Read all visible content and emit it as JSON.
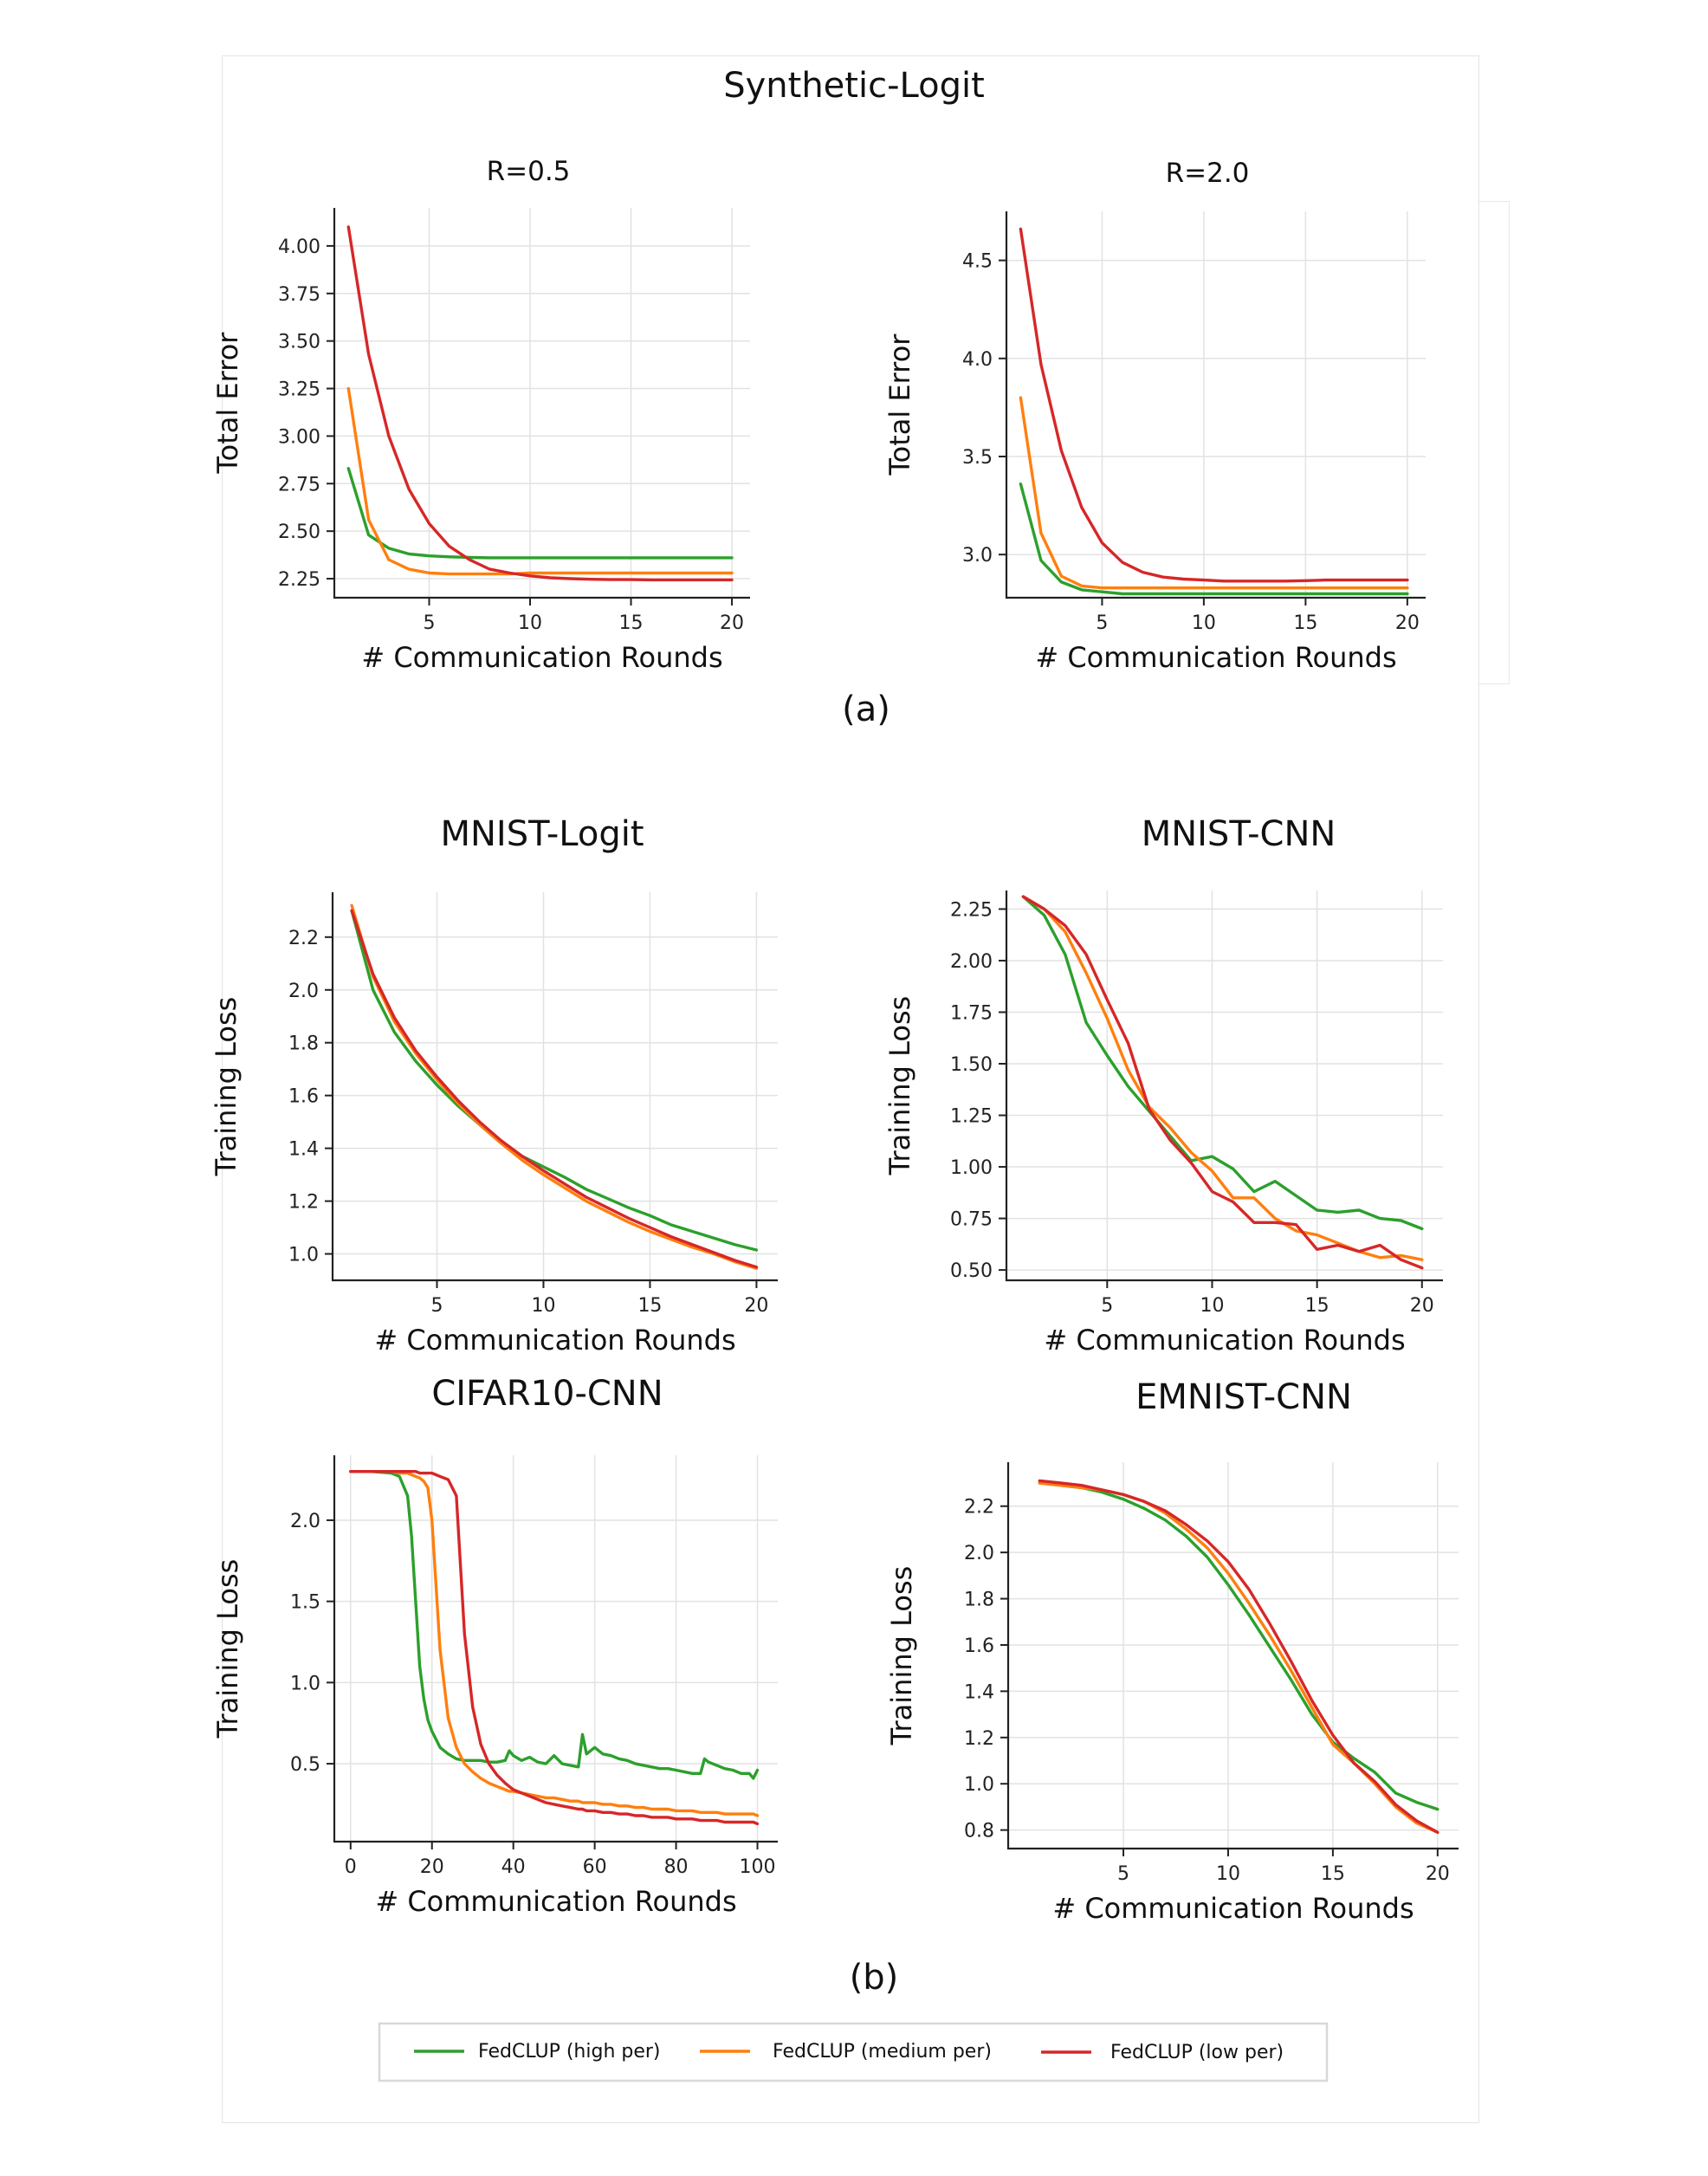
{
  "figure": {
    "top_title": "Synthetic-Logit",
    "label_a": "(a)",
    "label_b": "(b)"
  },
  "legend": [
    {
      "name": "FedCLUP (high per)",
      "color": "#2ca02c"
    },
    {
      "name": "FedCLUP (medium per)",
      "color": "#ff7f0e"
    },
    {
      "name": "FedCLUP (low per)",
      "color": "#d62728"
    }
  ],
  "chart_data": [
    {
      "id": "r05",
      "type": "line",
      "title": "R=0.5",
      "xlabel": "# Communication Rounds",
      "ylabel": "Total Error",
      "xlim": [
        0.3,
        20.9
      ],
      "ylim": [
        2.15,
        4.2
      ],
      "xticks": [
        5,
        10,
        15,
        20
      ],
      "yticks": [
        2.25,
        2.5,
        2.75,
        3.0,
        3.25,
        3.5,
        3.75,
        4.0
      ],
      "ydec": 2,
      "x": [
        1,
        2,
        3,
        4,
        5,
        6,
        7,
        8,
        9,
        10,
        11,
        12,
        13,
        14,
        15,
        16,
        17,
        18,
        19,
        20
      ],
      "series": [
        {
          "name": "FedCLUP (high per)",
          "values": [
            2.83,
            2.48,
            2.41,
            2.38,
            2.37,
            2.365,
            2.362,
            2.36,
            2.36,
            2.36,
            2.36,
            2.36,
            2.36,
            2.36,
            2.36,
            2.36,
            2.36,
            2.36,
            2.36,
            2.36
          ]
        },
        {
          "name": "FedCLUP (medium per)",
          "values": [
            3.25,
            2.56,
            2.35,
            2.3,
            2.28,
            2.275,
            2.275,
            2.275,
            2.275,
            2.28,
            2.28,
            2.28,
            2.28,
            2.28,
            2.28,
            2.28,
            2.28,
            2.28,
            2.28,
            2.28
          ]
        },
        {
          "name": "FedCLUP (low per)",
          "values": [
            4.1,
            3.43,
            3.0,
            2.72,
            2.54,
            2.42,
            2.35,
            2.3,
            2.28,
            2.265,
            2.255,
            2.25,
            2.247,
            2.245,
            2.245,
            2.244,
            2.244,
            2.244,
            2.244,
            2.244
          ]
        }
      ]
    },
    {
      "id": "r20",
      "type": "line",
      "title": "R=2.0",
      "xlabel": "# Communication Rounds",
      "ylabel": "Total Error",
      "xlim": [
        0.3,
        20.9
      ],
      "ylim": [
        2.78,
        4.75
      ],
      "xticks": [
        5,
        10,
        15,
        20
      ],
      "yticks": [
        3.0,
        3.5,
        4.0,
        4.5
      ],
      "ydec": 1,
      "x": [
        1,
        2,
        3,
        4,
        5,
        6,
        7,
        8,
        9,
        10,
        11,
        12,
        13,
        14,
        15,
        16,
        17,
        18,
        19,
        20
      ],
      "series": [
        {
          "name": "FedCLUP (high per)",
          "values": [
            3.36,
            2.97,
            2.86,
            2.82,
            2.81,
            2.8,
            2.8,
            2.8,
            2.8,
            2.8,
            2.8,
            2.8,
            2.8,
            2.8,
            2.8,
            2.8,
            2.8,
            2.8,
            2.8,
            2.8
          ]
        },
        {
          "name": "FedCLUP (medium per)",
          "values": [
            3.8,
            3.11,
            2.89,
            2.84,
            2.83,
            2.83,
            2.83,
            2.83,
            2.83,
            2.83,
            2.83,
            2.83,
            2.83,
            2.83,
            2.83,
            2.83,
            2.83,
            2.83,
            2.83,
            2.83
          ]
        },
        {
          "name": "FedCLUP (low per)",
          "values": [
            4.66,
            3.97,
            3.53,
            3.24,
            3.06,
            2.96,
            2.91,
            2.885,
            2.875,
            2.87,
            2.865,
            2.865,
            2.865,
            2.865,
            2.867,
            2.87,
            2.87,
            2.87,
            2.87,
            2.87
          ]
        }
      ]
    },
    {
      "id": "mnist_logit",
      "type": "line",
      "title": "MNIST-Logit",
      "xlabel": "# Communication Rounds",
      "ylabel": "Training Loss",
      "xlim": [
        0.1,
        21.0
      ],
      "ylim": [
        0.9,
        2.37
      ],
      "xticks": [
        5,
        10,
        15,
        20
      ],
      "yticks": [
        1.0,
        1.2,
        1.4,
        1.6,
        1.8,
        2.0,
        2.2
      ],
      "ydec": 1,
      "x": [
        1,
        2,
        3,
        4,
        5,
        6,
        7,
        8,
        9,
        10,
        11,
        12,
        13,
        14,
        15,
        16,
        17,
        18,
        19,
        20
      ],
      "series": [
        {
          "name": "FedCLUP (high per)",
          "values": [
            2.3,
            2.0,
            1.84,
            1.73,
            1.64,
            1.56,
            1.49,
            1.42,
            1.37,
            1.33,
            1.29,
            1.245,
            1.21,
            1.175,
            1.145,
            1.11,
            1.085,
            1.06,
            1.035,
            1.015
          ]
        },
        {
          "name": "FedCLUP (medium per)",
          "values": [
            2.32,
            2.05,
            1.88,
            1.76,
            1.66,
            1.57,
            1.49,
            1.42,
            1.355,
            1.3,
            1.25,
            1.2,
            1.16,
            1.12,
            1.085,
            1.055,
            1.025,
            1.0,
            0.97,
            0.945
          ]
        },
        {
          "name": "FedCLUP (low per)",
          "values": [
            2.3,
            2.06,
            1.895,
            1.77,
            1.67,
            1.58,
            1.5,
            1.43,
            1.37,
            1.315,
            1.265,
            1.215,
            1.175,
            1.135,
            1.1,
            1.065,
            1.035,
            1.005,
            0.975,
            0.95
          ]
        }
      ]
    },
    {
      "id": "mnist_cnn",
      "type": "line",
      "title": "MNIST-CNN",
      "xlabel": "# Communication Rounds",
      "ylabel": "Training Loss",
      "xlim": [
        0.2,
        21.0
      ],
      "ylim": [
        0.45,
        2.34
      ],
      "xticks": [
        5,
        10,
        15,
        20
      ],
      "yticks": [
        0.5,
        0.75,
        1.0,
        1.25,
        1.5,
        1.75,
        2.0,
        2.25
      ],
      "ydec": 2,
      "x": [
        1,
        2,
        3,
        4,
        5,
        6,
        7,
        8,
        9,
        10,
        11,
        12,
        13,
        14,
        15,
        16,
        17,
        18,
        19,
        20
      ],
      "series": [
        {
          "name": "FedCLUP (high per)",
          "values": [
            2.31,
            2.22,
            2.03,
            1.7,
            1.54,
            1.39,
            1.27,
            1.15,
            1.03,
            1.05,
            0.99,
            0.88,
            0.93,
            0.86,
            0.79,
            0.78,
            0.79,
            0.75,
            0.74,
            0.7
          ]
        },
        {
          "name": "FedCLUP (medium per)",
          "values": [
            2.31,
            2.25,
            2.14,
            1.94,
            1.72,
            1.47,
            1.29,
            1.19,
            1.07,
            0.98,
            0.85,
            0.85,
            0.75,
            0.69,
            0.67,
            0.63,
            0.59,
            0.56,
            0.57,
            0.55
          ]
        },
        {
          "name": "FedCLUP (low per)",
          "values": [
            2.31,
            2.25,
            2.17,
            2.03,
            1.81,
            1.6,
            1.28,
            1.13,
            1.02,
            0.88,
            0.83,
            0.73,
            0.73,
            0.72,
            0.6,
            0.62,
            0.59,
            0.62,
            0.55,
            0.51
          ]
        }
      ]
    },
    {
      "id": "cifar10_cnn",
      "type": "line",
      "title": "CIFAR10-CNN",
      "xlabel": "# Communication Rounds",
      "ylabel": "Training Loss",
      "xlim": [
        -4,
        105
      ],
      "ylim": [
        0.02,
        2.4
      ],
      "xticks": [
        0,
        20,
        40,
        60,
        80,
        100
      ],
      "yticks": [
        0.5,
        1.0,
        1.5,
        2.0
      ],
      "ydec": 1,
      "x": [
        0,
        5,
        10,
        12,
        14,
        15,
        16,
        17,
        18,
        19,
        20,
        21,
        22,
        24,
        26,
        28,
        30,
        32,
        34,
        36,
        38,
        39,
        40,
        42,
        44,
        46,
        48,
        50,
        52,
        54,
        56,
        57,
        58,
        60,
        62,
        64,
        66,
        68,
        70,
        72,
        74,
        76,
        78,
        80,
        82,
        84,
        86,
        87,
        88,
        90,
        92,
        94,
        96,
        98,
        99,
        100
      ],
      "series": [
        {
          "name": "FedCLUP (high per)",
          "values": [
            2.3,
            2.3,
            2.29,
            2.27,
            2.15,
            1.9,
            1.5,
            1.1,
            0.9,
            0.77,
            0.7,
            0.65,
            0.6,
            0.56,
            0.53,
            0.52,
            0.52,
            0.52,
            0.51,
            0.51,
            0.52,
            0.58,
            0.55,
            0.52,
            0.54,
            0.51,
            0.5,
            0.55,
            0.5,
            0.49,
            0.48,
            0.68,
            0.56,
            0.6,
            0.56,
            0.55,
            0.53,
            0.52,
            0.5,
            0.49,
            0.48,
            0.47,
            0.47,
            0.46,
            0.45,
            0.44,
            0.44,
            0.53,
            0.51,
            0.49,
            0.47,
            0.46,
            0.44,
            0.44,
            0.41,
            0.46
          ]
        },
        {
          "name": "FedCLUP (medium per)",
          "values": [
            2.3,
            2.3,
            2.3,
            2.29,
            2.29,
            2.28,
            2.27,
            2.26,
            2.24,
            2.2,
            2.0,
            1.6,
            1.2,
            0.78,
            0.6,
            0.5,
            0.45,
            0.41,
            0.38,
            0.36,
            0.34,
            0.33,
            0.33,
            0.32,
            0.31,
            0.3,
            0.29,
            0.29,
            0.28,
            0.27,
            0.27,
            0.26,
            0.26,
            0.26,
            0.25,
            0.25,
            0.24,
            0.24,
            0.23,
            0.23,
            0.22,
            0.22,
            0.22,
            0.21,
            0.21,
            0.21,
            0.2,
            0.2,
            0.2,
            0.2,
            0.19,
            0.19,
            0.19,
            0.19,
            0.19,
            0.18
          ]
        },
        {
          "name": "FedCLUP (low per)",
          "values": [
            2.3,
            2.3,
            2.3,
            2.3,
            2.3,
            2.3,
            2.3,
            2.29,
            2.29,
            2.29,
            2.29,
            2.28,
            2.27,
            2.25,
            2.15,
            1.3,
            0.85,
            0.62,
            0.5,
            0.43,
            0.38,
            0.36,
            0.34,
            0.32,
            0.3,
            0.28,
            0.26,
            0.25,
            0.24,
            0.23,
            0.22,
            0.22,
            0.21,
            0.21,
            0.2,
            0.2,
            0.19,
            0.19,
            0.18,
            0.18,
            0.17,
            0.17,
            0.17,
            0.16,
            0.16,
            0.16,
            0.15,
            0.15,
            0.15,
            0.15,
            0.14,
            0.14,
            0.14,
            0.14,
            0.14,
            0.13
          ]
        }
      ]
    },
    {
      "id": "emnist_cnn",
      "type": "line",
      "title": "EMNIST-CNN",
      "xlabel": "# Communication Rounds",
      "ylabel": "Training Loss",
      "xlim": [
        -0.5,
        21.0
      ],
      "ylim": [
        0.72,
        2.39
      ],
      "xticks": [
        5,
        10,
        15,
        20
      ],
      "yticks": [
        0.8,
        1.0,
        1.2,
        1.4,
        1.6,
        1.8,
        2.0,
        2.2
      ],
      "ydec": 1,
      "x": [
        1,
        2,
        3,
        4,
        5,
        6,
        7,
        8,
        9,
        10,
        11,
        12,
        13,
        14,
        15,
        16,
        17,
        18,
        19,
        20
      ],
      "series": [
        {
          "name": "FedCLUP (high per)",
          "values": [
            2.3,
            2.29,
            2.28,
            2.26,
            2.23,
            2.19,
            2.14,
            2.07,
            1.98,
            1.86,
            1.73,
            1.59,
            1.45,
            1.3,
            1.18,
            1.11,
            1.05,
            0.96,
            0.92,
            0.89
          ]
        },
        {
          "name": "FedCLUP (medium per)",
          "values": [
            2.3,
            2.29,
            2.28,
            2.27,
            2.25,
            2.22,
            2.17,
            2.1,
            2.02,
            1.91,
            1.78,
            1.64,
            1.49,
            1.33,
            1.17,
            1.09,
            1.0,
            0.9,
            0.83,
            0.79
          ]
        },
        {
          "name": "FedCLUP (low per)",
          "values": [
            2.31,
            2.3,
            2.29,
            2.27,
            2.25,
            2.22,
            2.18,
            2.12,
            2.05,
            1.96,
            1.84,
            1.69,
            1.53,
            1.36,
            1.21,
            1.09,
            1.01,
            0.91,
            0.84,
            0.79
          ]
        }
      ]
    }
  ]
}
